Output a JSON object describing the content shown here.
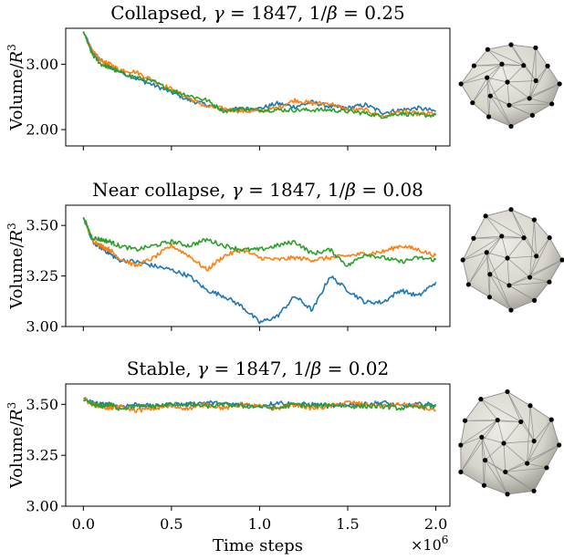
{
  "x_axis": {
    "label": "Time steps",
    "multiplier_label": "×10",
    "multiplier_exp": "6",
    "range": [
      -0.1,
      2.08
    ],
    "ticks": [
      0.0,
      0.5,
      1.0,
      1.5,
      2.0
    ],
    "tick_labels": [
      "0.0",
      "0.5",
      "1.0",
      "1.5",
      "2.0"
    ]
  },
  "colors": {
    "series1": "#1f77b4",
    "series2": "#ff7f0e",
    "series3": "#2ca02c",
    "mesh_fill": "#d7d4cb",
    "mesh_shadow": "#9a978f",
    "mesh_edge": "#8f8f8f",
    "vertex": "#000000"
  },
  "chart_data": [
    {
      "type": "line",
      "title": {
        "pre": "Collapsed, ",
        "gamma_sym": "γ",
        "gamma_val": " = 1847, 1/",
        "beta_sym": "β",
        "beta_val": " = 0.25"
      },
      "ylabel": {
        "pre": "Volume/",
        "var": "R",
        "exp": "3"
      },
      "ylim": [
        1.75,
        3.55
      ],
      "yticks": [
        2.0,
        3.0
      ],
      "ytick_labels": [
        "2.00",
        "3.00"
      ],
      "series": [
        {
          "color_key": "series1",
          "x": [
            0,
            0.05,
            0.1,
            0.15,
            0.2,
            0.3,
            0.4,
            0.5,
            0.6,
            0.7,
            0.8,
            0.9,
            1.0,
            1.1,
            1.2,
            1.3,
            1.4,
            1.5,
            1.6,
            1.7,
            1.8,
            1.9,
            2.0
          ],
          "y": [
            3.5,
            3.2,
            3.06,
            2.95,
            2.9,
            2.78,
            2.68,
            2.57,
            2.45,
            2.38,
            2.3,
            2.32,
            2.32,
            2.4,
            2.35,
            2.42,
            2.35,
            2.33,
            2.38,
            2.26,
            2.3,
            2.33,
            2.28
          ]
        },
        {
          "color_key": "series2",
          "x": [
            0,
            0.05,
            0.1,
            0.15,
            0.2,
            0.3,
            0.4,
            0.5,
            0.6,
            0.7,
            0.8,
            0.9,
            1.0,
            1.1,
            1.2,
            1.3,
            1.4,
            1.5,
            1.6,
            1.7,
            1.8,
            1.9,
            2.0
          ],
          "y": [
            3.5,
            3.2,
            3.05,
            3.0,
            2.92,
            2.88,
            2.75,
            2.62,
            2.48,
            2.35,
            2.32,
            2.28,
            2.28,
            2.33,
            2.45,
            2.4,
            2.4,
            2.3,
            2.3,
            2.2,
            2.28,
            2.24,
            2.25
          ]
        },
        {
          "color_key": "series3",
          "x": [
            0,
            0.05,
            0.1,
            0.15,
            0.2,
            0.3,
            0.4,
            0.5,
            0.6,
            0.7,
            0.8,
            0.9,
            1.0,
            1.1,
            1.2,
            1.3,
            1.4,
            1.5,
            1.6,
            1.7,
            1.8,
            1.9,
            2.0
          ],
          "y": [
            3.5,
            3.15,
            3.0,
            2.95,
            2.88,
            2.8,
            2.73,
            2.6,
            2.52,
            2.45,
            2.28,
            2.32,
            2.3,
            2.3,
            2.3,
            2.3,
            2.3,
            2.28,
            2.25,
            2.2,
            2.25,
            2.22,
            2.22
          ]
        }
      ]
    },
    {
      "type": "line",
      "title": {
        "pre": "Near collapse, ",
        "gamma_sym": "γ",
        "gamma_val": " = 1847, 1/",
        "beta_sym": "β",
        "beta_val": " = 0.08"
      },
      "ylabel": {
        "pre": "Volume/",
        "var": "R",
        "exp": "3"
      },
      "ylim": [
        3.0,
        3.6
      ],
      "yticks": [
        3.0,
        3.25,
        3.5
      ],
      "ytick_labels": [
        "3.00",
        "3.25",
        "3.50"
      ],
      "series": [
        {
          "color_key": "series1",
          "x": [
            0,
            0.05,
            0.1,
            0.15,
            0.2,
            0.3,
            0.4,
            0.5,
            0.6,
            0.7,
            0.8,
            0.9,
            1.0,
            1.1,
            1.2,
            1.3,
            1.4,
            1.5,
            1.6,
            1.7,
            1.8,
            1.9,
            2.0
          ],
          "y": [
            3.54,
            3.42,
            3.39,
            3.36,
            3.33,
            3.32,
            3.3,
            3.28,
            3.25,
            3.18,
            3.15,
            3.1,
            3.02,
            3.05,
            3.15,
            3.08,
            3.25,
            3.18,
            3.12,
            3.12,
            3.18,
            3.15,
            3.22
          ]
        },
        {
          "color_key": "series2",
          "x": [
            0,
            0.05,
            0.1,
            0.15,
            0.2,
            0.3,
            0.4,
            0.5,
            0.6,
            0.7,
            0.8,
            0.9,
            1.0,
            1.1,
            1.2,
            1.3,
            1.4,
            1.5,
            1.6,
            1.7,
            1.8,
            1.9,
            2.0
          ],
          "y": [
            3.54,
            3.43,
            3.4,
            3.38,
            3.34,
            3.3,
            3.34,
            3.4,
            3.35,
            3.28,
            3.35,
            3.38,
            3.34,
            3.33,
            3.34,
            3.33,
            3.34,
            3.35,
            3.36,
            3.37,
            3.4,
            3.38,
            3.35
          ]
        },
        {
          "color_key": "series3",
          "x": [
            0,
            0.05,
            0.1,
            0.15,
            0.2,
            0.3,
            0.4,
            0.5,
            0.6,
            0.7,
            0.8,
            0.9,
            1.0,
            1.1,
            1.2,
            1.3,
            1.4,
            1.5,
            1.6,
            1.7,
            1.8,
            1.9,
            2.0
          ],
          "y": [
            3.54,
            3.44,
            3.43,
            3.42,
            3.4,
            3.38,
            3.4,
            3.42,
            3.4,
            3.43,
            3.4,
            3.38,
            3.38,
            3.4,
            3.42,
            3.36,
            3.38,
            3.3,
            3.36,
            3.34,
            3.32,
            3.34,
            3.33
          ]
        }
      ]
    },
    {
      "type": "line",
      "title": {
        "pre": "Stable, ",
        "gamma_sym": "γ",
        "gamma_val": " = 1847, 1/",
        "beta_sym": "β",
        "beta_val": " = 0.02"
      },
      "ylabel": {
        "pre": "Volume/",
        "var": "R",
        "exp": "3"
      },
      "ylim": [
        3.0,
        3.6
      ],
      "yticks": [
        3.0,
        3.25,
        3.5
      ],
      "ytick_labels": [
        "3.00",
        "3.25",
        "3.50"
      ],
      "series": [
        {
          "color_key": "series1",
          "x": [
            0,
            0.05,
            0.1,
            0.15,
            0.2,
            0.3,
            0.4,
            0.5,
            0.6,
            0.7,
            0.8,
            0.9,
            1.0,
            1.1,
            1.2,
            1.3,
            1.4,
            1.5,
            1.6,
            1.7,
            1.8,
            1.9,
            2.0
          ],
          "y": [
            3.53,
            3.51,
            3.5,
            3.5,
            3.49,
            3.5,
            3.49,
            3.5,
            3.5,
            3.51,
            3.5,
            3.5,
            3.49,
            3.51,
            3.5,
            3.5,
            3.49,
            3.5,
            3.5,
            3.51,
            3.49,
            3.5,
            3.5
          ]
        },
        {
          "color_key": "series2",
          "x": [
            0,
            0.05,
            0.1,
            0.15,
            0.2,
            0.3,
            0.4,
            0.5,
            0.6,
            0.7,
            0.8,
            0.9,
            1.0,
            1.1,
            1.2,
            1.3,
            1.4,
            1.5,
            1.6,
            1.7,
            1.8,
            1.9,
            2.0
          ],
          "y": [
            3.53,
            3.5,
            3.49,
            3.48,
            3.49,
            3.47,
            3.48,
            3.49,
            3.48,
            3.5,
            3.48,
            3.5,
            3.49,
            3.48,
            3.5,
            3.48,
            3.49,
            3.51,
            3.5,
            3.49,
            3.5,
            3.49,
            3.47
          ]
        },
        {
          "color_key": "series3",
          "x": [
            0,
            0.05,
            0.1,
            0.15,
            0.2,
            0.3,
            0.4,
            0.5,
            0.6,
            0.7,
            0.8,
            0.9,
            1.0,
            1.1,
            1.2,
            1.3,
            1.4,
            1.5,
            1.6,
            1.7,
            1.8,
            1.9,
            2.0
          ],
          "y": [
            3.52,
            3.5,
            3.49,
            3.5,
            3.48,
            3.49,
            3.49,
            3.5,
            3.5,
            3.49,
            3.5,
            3.49,
            3.49,
            3.48,
            3.5,
            3.49,
            3.5,
            3.49,
            3.49,
            3.49,
            3.48,
            3.49,
            3.49
          ]
        }
      ]
    }
  ]
}
